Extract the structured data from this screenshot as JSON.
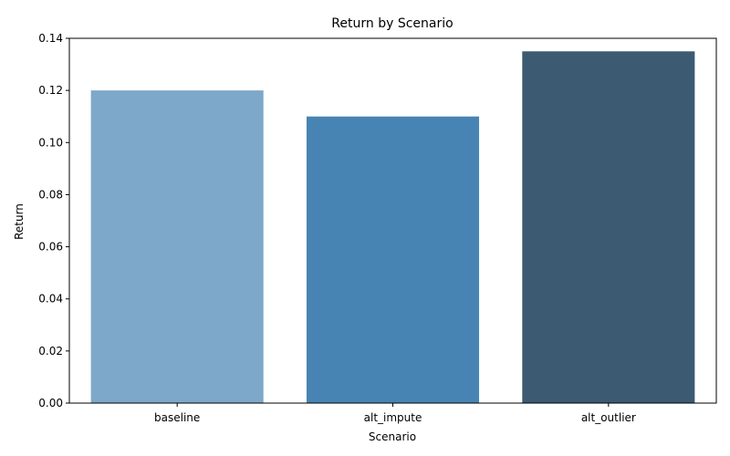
{
  "chart_data": {
    "type": "bar",
    "title": "Return by Scenario",
    "xlabel": "Scenario",
    "ylabel": "Return",
    "categories": [
      "baseline",
      "alt_impute",
      "alt_outlier"
    ],
    "values": [
      0.12,
      0.11,
      0.135
    ],
    "colors": [
      "#7da8c9",
      "#4884b3",
      "#3c5b72"
    ],
    "ylim": [
      0,
      0.14
    ],
    "yticks": [
      0.0,
      0.02,
      0.04,
      0.06,
      0.08,
      0.1,
      0.12,
      0.14
    ],
    "ytick_labels": [
      "0.00",
      "0.02",
      "0.04",
      "0.06",
      "0.08",
      "0.10",
      "0.12",
      "0.14"
    ],
    "grid": false,
    "legend": "none"
  }
}
